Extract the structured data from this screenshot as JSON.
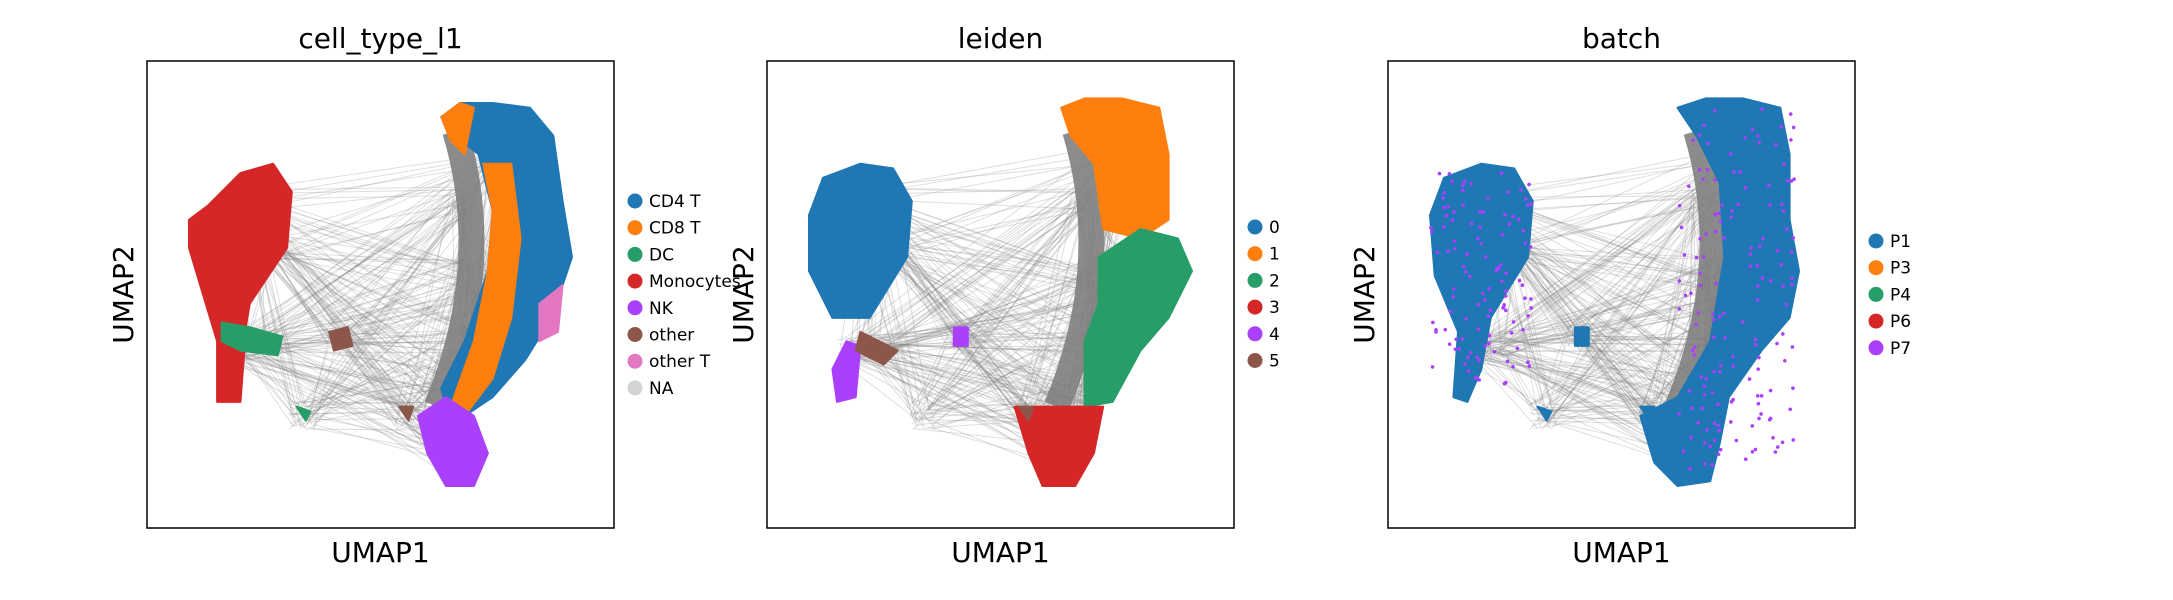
{
  "chart_data": [
    {
      "type": "scatter",
      "title": "cell_type_l1",
      "xlabel": "UMAP1",
      "ylabel": "UMAP2",
      "grid": false,
      "legend_position": "right",
      "colors": {
        "edges": "#808080"
      },
      "legend": [
        {
          "label": "CD4 T",
          "color": "#1f77b4"
        },
        {
          "label": "CD8 T",
          "color": "#ff7f0e"
        },
        {
          "label": "DC",
          "color": "#279e68"
        },
        {
          "label": "Monocytes",
          "color": "#d62728"
        },
        {
          "label": "NK",
          "color": "#aa40fc"
        },
        {
          "label": "other",
          "color": "#8c564b"
        },
        {
          "label": "other T",
          "color": "#e377c2"
        },
        {
          "label": "NA",
          "color": "#d3d3d3"
        }
      ]
    },
    {
      "type": "scatter",
      "title": "leiden",
      "xlabel": "UMAP1",
      "ylabel": "UMAP2",
      "grid": false,
      "legend_position": "right",
      "colors": {
        "edges": "#808080"
      },
      "legend": [
        {
          "label": "0",
          "color": "#1f77b4"
        },
        {
          "label": "1",
          "color": "#ff7f0e"
        },
        {
          "label": "2",
          "color": "#279e68"
        },
        {
          "label": "3",
          "color": "#d62728"
        },
        {
          "label": "4",
          "color": "#aa40fc"
        },
        {
          "label": "5",
          "color": "#8c564b"
        }
      ]
    },
    {
      "type": "scatter",
      "title": "batch",
      "xlabel": "UMAP1",
      "ylabel": "UMAP2",
      "grid": false,
      "legend_position": "right",
      "colors": {
        "edges": "#808080"
      },
      "legend": [
        {
          "label": "P1",
          "color": "#1f77b4"
        },
        {
          "label": "P3",
          "color": "#ff7f0e"
        },
        {
          "label": "P4",
          "color": "#279e68"
        },
        {
          "label": "P6",
          "color": "#d62728"
        },
        {
          "label": "P7",
          "color": "#aa40fc"
        }
      ]
    }
  ]
}
